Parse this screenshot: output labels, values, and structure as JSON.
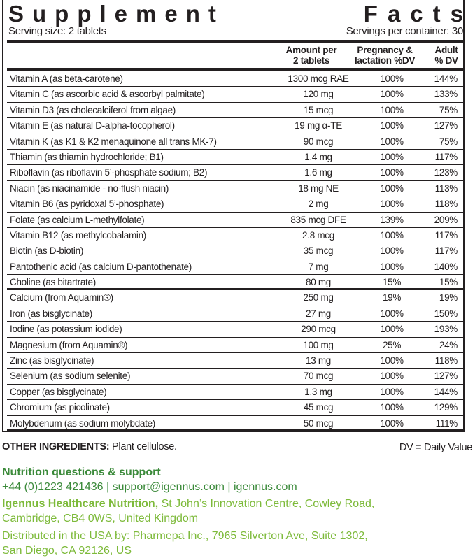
{
  "title_left": "Supplement",
  "title_right": "Facts",
  "serving_size": "Serving size: 2 tablets",
  "servings_per_container": "Servings per container: 30",
  "headers": {
    "amount": [
      "Amount per",
      "2 tablets"
    ],
    "pregnancy": [
      "Pregnancy &",
      "lactation %DV"
    ],
    "adult": [
      "Adult",
      "% DV"
    ]
  },
  "rows": [
    {
      "name": "Vitamin A (as beta-carotene)",
      "amount": "1300 mcg RAE",
      "pregnancy": "100%",
      "adult": "144%"
    },
    {
      "name": "Vitamin C (as ascorbic acid & ascorbyl palmitate)",
      "amount": "120 mg",
      "pregnancy": "100%",
      "adult": "133%"
    },
    {
      "name": "Vitamin D3 (as cholecalciferol from algae)",
      "amount": "15 mcg",
      "pregnancy": "100%",
      "adult": "75%"
    },
    {
      "name": "Vitamin E (as natural D-alpha-tocopherol)",
      "amount": "19 mg α-TE",
      "pregnancy": "100%",
      "adult": "127%"
    },
    {
      "name": "Vitamin K (as K1 & K2 menaquinone all trans MK-7)",
      "amount": "90 mcg",
      "pregnancy": "100%",
      "adult": "75%"
    },
    {
      "name": "Thiamin (as thiamin hydrochloride; B1)",
      "amount": "1.4 mg",
      "pregnancy": "100%",
      "adult": "117%"
    },
    {
      "name": "Riboflavin (as riboflavin 5’-phosphate sodium; B2)",
      "amount": "1.6 mg",
      "pregnancy": "100%",
      "adult": "123%"
    },
    {
      "name": "Niacin (as niacinamide - no-flush niacin)",
      "amount": "18 mg NE",
      "pregnancy": "100%",
      "adult": "113%"
    },
    {
      "name": "Vitamin B6 (as pyridoxal 5’-phosphate)",
      "amount": "2 mg",
      "pregnancy": "100%",
      "adult": "118%"
    },
    {
      "name": "Folate (as calcium L-methylfolate)",
      "amount": "835 mcg DFE",
      "pregnancy": "139%",
      "adult": "209%"
    },
    {
      "name": "Vitamin B12 (as methylcobalamin)",
      "amount": "2.8 mcg",
      "pregnancy": "100%",
      "adult": "117%"
    },
    {
      "name": "Biotin (as D-biotin)",
      "amount": "35 mcg",
      "pregnancy": "100%",
      "adult": "117%"
    },
    {
      "name": "Pantothenic acid (as calcium D-pantothenate)",
      "amount": "7 mg",
      "pregnancy": "100%",
      "adult": "140%"
    },
    {
      "name": "Choline (as bitartrate)",
      "amount": "80 mg",
      "pregnancy": "15%",
      "adult": "15%"
    },
    {
      "name": "Calcium (from Aquamin®)",
      "amount": "250 mg",
      "pregnancy": "19%",
      "adult": "19%"
    },
    {
      "name": "Iron (as bisglycinate)",
      "amount": "27 mg",
      "pregnancy": "100%",
      "adult": "150%"
    },
    {
      "name": "Iodine (as potassium iodide)",
      "amount": "290 mcg",
      "pregnancy": "100%",
      "adult": "193%"
    },
    {
      "name": "Magnesium (from Aquamin®)",
      "amount": "100 mg",
      "pregnancy": "25%",
      "adult": "24%"
    },
    {
      "name": "Zinc (as bisglycinate)",
      "amount": "13 mg",
      "pregnancy": "100%",
      "adult": "118%"
    },
    {
      "name": "Selenium (as sodium selenite)",
      "amount": "70 mcg",
      "pregnancy": "100%",
      "adult": "127%"
    },
    {
      "name": "Copper (as bisglycinate)",
      "amount": "1.3 mg",
      "pregnancy": "100%",
      "adult": "144%"
    },
    {
      "name": "Chromium (as picolinate)",
      "amount": "45 mcg",
      "pregnancy": "100%",
      "adult": "129%"
    },
    {
      "name": "Molybdenum (as sodium molybdate)",
      "amount": "50 mcg",
      "pregnancy": "100%",
      "adult": "111%"
    }
  ],
  "other_label": "OTHER INGREDIENTS:",
  "other_value": " Plant cellulose.",
  "dv_note": "DV = Daily Value",
  "support_heading": "Nutrition questions & support",
  "support_contact": "+44 (0)1223 421436 | support@igennus.com | igennus.com",
  "company_name": "Igennus Healthcare Nutrition,",
  "company_address_1": " St John’s Innovation Centre, Cowley Road,",
  "company_address_2": "Cambridge, CB4 0WS, United Kingdom",
  "distributor_1": "Distributed in the USA by: Pharmepa Inc., 7965 Silverton Ave, Suite 1302,",
  "distributor_2": "San Diego, CA 92126, US",
  "colors": {
    "text": "#231f20",
    "green_dark": "#3b8a3a",
    "green_light": "#7dba3a"
  }
}
